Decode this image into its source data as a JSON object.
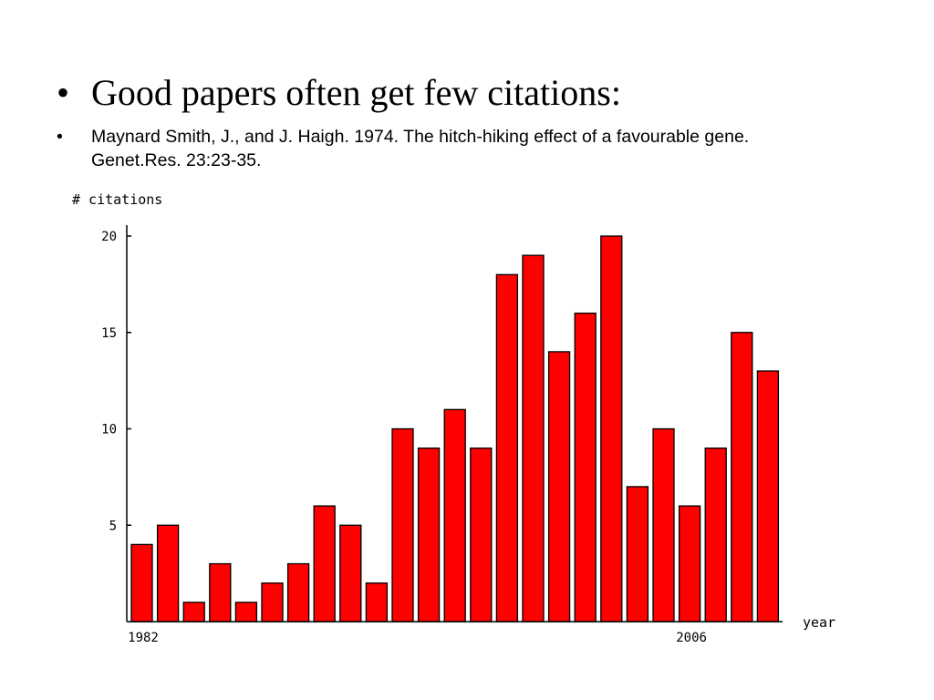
{
  "slide": {
    "bullet_glyph": "•",
    "title": "Good papers often get few citations:",
    "reference_line1": "Maynard Smith, J., and J. Haigh. 1974. The hitch-hiking effect of a favourable gene.",
    "reference_line2": "Genet.Res. 23:23-35."
  },
  "chart_data": {
    "type": "bar",
    "ylabel": "# citations",
    "xlabel": "year",
    "x_tick_labels": [
      "1982",
      "2006"
    ],
    "x_tick_indices": [
      0,
      21
    ],
    "y_ticks": [
      5,
      10,
      15,
      20
    ],
    "ylim": [
      0,
      20
    ],
    "grid": false,
    "bar_color": "#ff0000",
    "values": [
      4,
      5,
      1,
      3,
      1,
      2,
      3,
      6,
      5,
      2,
      10,
      9,
      11,
      9,
      18,
      19,
      14,
      16,
      20,
      7,
      10,
      6,
      9,
      15,
      13
    ]
  }
}
